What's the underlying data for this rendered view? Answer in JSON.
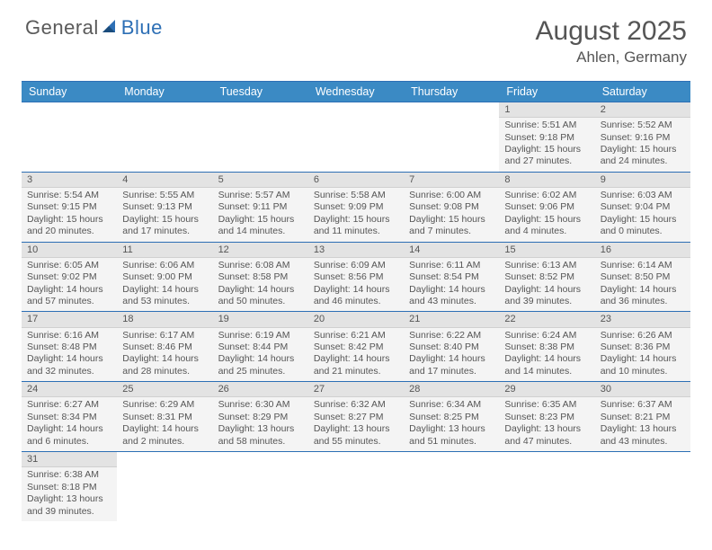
{
  "brand": {
    "part1": "General",
    "part2": "Blue"
  },
  "title": "August 2025",
  "location": "Ahlen, Germany",
  "colors": {
    "header_bg": "#3b8ac4",
    "border": "#2d6fb5",
    "cell_bg": "#f4f4f4",
    "daynum_bg": "#e3e3e3"
  },
  "weekdays": [
    "Sunday",
    "Monday",
    "Tuesday",
    "Wednesday",
    "Thursday",
    "Friday",
    "Saturday"
  ],
  "weeks": [
    [
      {
        "blank": true
      },
      {
        "blank": true
      },
      {
        "blank": true
      },
      {
        "blank": true
      },
      {
        "blank": true
      },
      {
        "day": "1",
        "sunrise": "Sunrise: 5:51 AM",
        "sunset": "Sunset: 9:18 PM",
        "daylight": "Daylight: 15 hours and 27 minutes."
      },
      {
        "day": "2",
        "sunrise": "Sunrise: 5:52 AM",
        "sunset": "Sunset: 9:16 PM",
        "daylight": "Daylight: 15 hours and 24 minutes."
      }
    ],
    [
      {
        "day": "3",
        "sunrise": "Sunrise: 5:54 AM",
        "sunset": "Sunset: 9:15 PM",
        "daylight": "Daylight: 15 hours and 20 minutes."
      },
      {
        "day": "4",
        "sunrise": "Sunrise: 5:55 AM",
        "sunset": "Sunset: 9:13 PM",
        "daylight": "Daylight: 15 hours and 17 minutes."
      },
      {
        "day": "5",
        "sunrise": "Sunrise: 5:57 AM",
        "sunset": "Sunset: 9:11 PM",
        "daylight": "Daylight: 15 hours and 14 minutes."
      },
      {
        "day": "6",
        "sunrise": "Sunrise: 5:58 AM",
        "sunset": "Sunset: 9:09 PM",
        "daylight": "Daylight: 15 hours and 11 minutes."
      },
      {
        "day": "7",
        "sunrise": "Sunrise: 6:00 AM",
        "sunset": "Sunset: 9:08 PM",
        "daylight": "Daylight: 15 hours and 7 minutes."
      },
      {
        "day": "8",
        "sunrise": "Sunrise: 6:02 AM",
        "sunset": "Sunset: 9:06 PM",
        "daylight": "Daylight: 15 hours and 4 minutes."
      },
      {
        "day": "9",
        "sunrise": "Sunrise: 6:03 AM",
        "sunset": "Sunset: 9:04 PM",
        "daylight": "Daylight: 15 hours and 0 minutes."
      }
    ],
    [
      {
        "day": "10",
        "sunrise": "Sunrise: 6:05 AM",
        "sunset": "Sunset: 9:02 PM",
        "daylight": "Daylight: 14 hours and 57 minutes."
      },
      {
        "day": "11",
        "sunrise": "Sunrise: 6:06 AM",
        "sunset": "Sunset: 9:00 PM",
        "daylight": "Daylight: 14 hours and 53 minutes."
      },
      {
        "day": "12",
        "sunrise": "Sunrise: 6:08 AM",
        "sunset": "Sunset: 8:58 PM",
        "daylight": "Daylight: 14 hours and 50 minutes."
      },
      {
        "day": "13",
        "sunrise": "Sunrise: 6:09 AM",
        "sunset": "Sunset: 8:56 PM",
        "daylight": "Daylight: 14 hours and 46 minutes."
      },
      {
        "day": "14",
        "sunrise": "Sunrise: 6:11 AM",
        "sunset": "Sunset: 8:54 PM",
        "daylight": "Daylight: 14 hours and 43 minutes."
      },
      {
        "day": "15",
        "sunrise": "Sunrise: 6:13 AM",
        "sunset": "Sunset: 8:52 PM",
        "daylight": "Daylight: 14 hours and 39 minutes."
      },
      {
        "day": "16",
        "sunrise": "Sunrise: 6:14 AM",
        "sunset": "Sunset: 8:50 PM",
        "daylight": "Daylight: 14 hours and 36 minutes."
      }
    ],
    [
      {
        "day": "17",
        "sunrise": "Sunrise: 6:16 AM",
        "sunset": "Sunset: 8:48 PM",
        "daylight": "Daylight: 14 hours and 32 minutes."
      },
      {
        "day": "18",
        "sunrise": "Sunrise: 6:17 AM",
        "sunset": "Sunset: 8:46 PM",
        "daylight": "Daylight: 14 hours and 28 minutes."
      },
      {
        "day": "19",
        "sunrise": "Sunrise: 6:19 AM",
        "sunset": "Sunset: 8:44 PM",
        "daylight": "Daylight: 14 hours and 25 minutes."
      },
      {
        "day": "20",
        "sunrise": "Sunrise: 6:21 AM",
        "sunset": "Sunset: 8:42 PM",
        "daylight": "Daylight: 14 hours and 21 minutes."
      },
      {
        "day": "21",
        "sunrise": "Sunrise: 6:22 AM",
        "sunset": "Sunset: 8:40 PM",
        "daylight": "Daylight: 14 hours and 17 minutes."
      },
      {
        "day": "22",
        "sunrise": "Sunrise: 6:24 AM",
        "sunset": "Sunset: 8:38 PM",
        "daylight": "Daylight: 14 hours and 14 minutes."
      },
      {
        "day": "23",
        "sunrise": "Sunrise: 6:26 AM",
        "sunset": "Sunset: 8:36 PM",
        "daylight": "Daylight: 14 hours and 10 minutes."
      }
    ],
    [
      {
        "day": "24",
        "sunrise": "Sunrise: 6:27 AM",
        "sunset": "Sunset: 8:34 PM",
        "daylight": "Daylight: 14 hours and 6 minutes."
      },
      {
        "day": "25",
        "sunrise": "Sunrise: 6:29 AM",
        "sunset": "Sunset: 8:31 PM",
        "daylight": "Daylight: 14 hours and 2 minutes."
      },
      {
        "day": "26",
        "sunrise": "Sunrise: 6:30 AM",
        "sunset": "Sunset: 8:29 PM",
        "daylight": "Daylight: 13 hours and 58 minutes."
      },
      {
        "day": "27",
        "sunrise": "Sunrise: 6:32 AM",
        "sunset": "Sunset: 8:27 PM",
        "daylight": "Daylight: 13 hours and 55 minutes."
      },
      {
        "day": "28",
        "sunrise": "Sunrise: 6:34 AM",
        "sunset": "Sunset: 8:25 PM",
        "daylight": "Daylight: 13 hours and 51 minutes."
      },
      {
        "day": "29",
        "sunrise": "Sunrise: 6:35 AM",
        "sunset": "Sunset: 8:23 PM",
        "daylight": "Daylight: 13 hours and 47 minutes."
      },
      {
        "day": "30",
        "sunrise": "Sunrise: 6:37 AM",
        "sunset": "Sunset: 8:21 PM",
        "daylight": "Daylight: 13 hours and 43 minutes."
      }
    ],
    [
      {
        "day": "31",
        "sunrise": "Sunrise: 6:38 AM",
        "sunset": "Sunset: 8:18 PM",
        "daylight": "Daylight: 13 hours and 39 minutes."
      },
      {
        "blank": true
      },
      {
        "blank": true
      },
      {
        "blank": true
      },
      {
        "blank": true
      },
      {
        "blank": true
      },
      {
        "blank": true
      }
    ]
  ]
}
